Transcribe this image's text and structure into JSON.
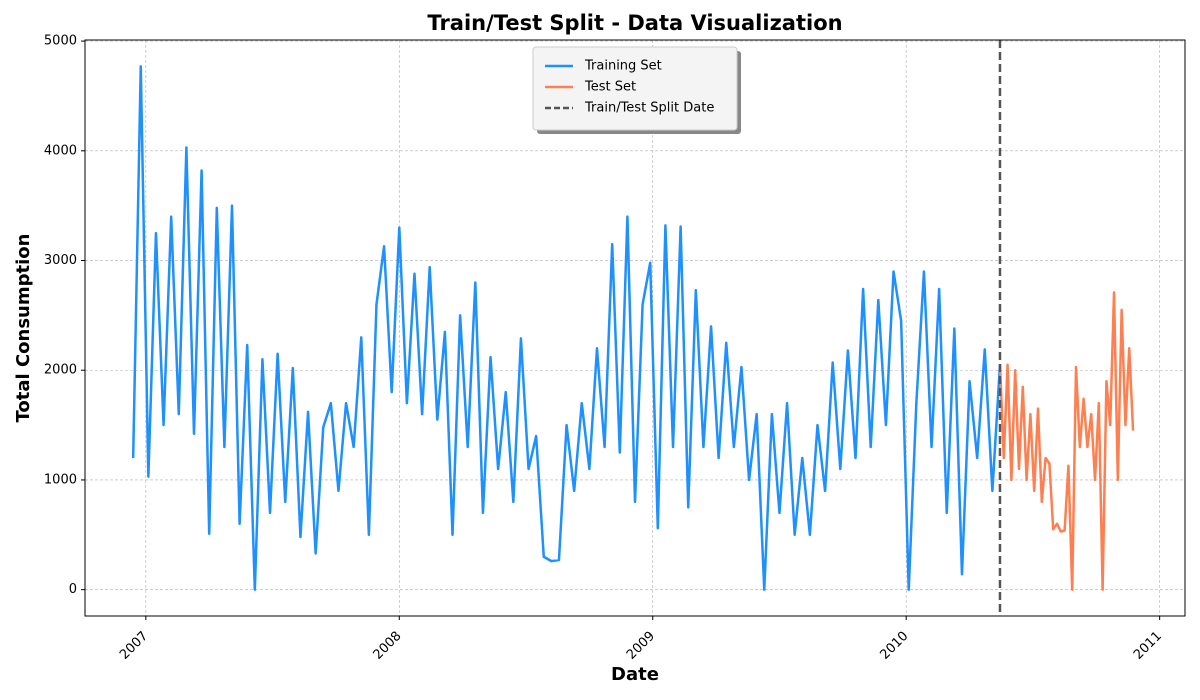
{
  "chart_data": {
    "type": "line",
    "title": "Train/Test Split - Data Visualization",
    "x_label": "Date",
    "y_label": "Total Consumption",
    "xlim": [
      2006.76,
      2011.1
    ],
    "xticks": [
      2007,
      2008,
      2009,
      2010,
      2011
    ],
    "ylim": [
      -240,
      5010
    ],
    "yticks": [
      0,
      1000,
      2000,
      3000,
      4000,
      5000
    ],
    "grid": true,
    "legend_position": "upper center",
    "split_x": 2010.37,
    "split_label": "Train/Test Split Date",
    "split_color": "#555555",
    "series": [
      {
        "name": "Training Set",
        "color": "#1e90ff",
        "x": [
          2006.95,
          2006.98,
          2007.01,
          2007.04,
          2007.07,
          2007.1,
          2007.13,
          2007.16,
          2007.19,
          2007.22,
          2007.25,
          2007.28,
          2007.31,
          2007.34,
          2007.37,
          2007.4,
          2007.43,
          2007.46,
          2007.49,
          2007.52,
          2007.55,
          2007.58,
          2007.61,
          2007.64,
          2007.67,
          2007.7,
          2007.73,
          2007.76,
          2007.79,
          2007.82,
          2007.85,
          2007.88,
          2007.91,
          2007.94,
          2007.97,
          2008,
          2008.03,
          2008.06,
          2008.09,
          2008.12,
          2008.15,
          2008.18,
          2008.21,
          2008.24,
          2008.27,
          2008.3,
          2008.33,
          2008.36,
          2008.39,
          2008.42,
          2008.45,
          2008.48,
          2008.51,
          2008.54,
          2008.57,
          2008.6,
          2008.63,
          2008.66,
          2008.69,
          2008.72,
          2008.75,
          2008.78,
          2008.81,
          2008.84,
          2008.87,
          2008.9,
          2008.93,
          2008.96,
          2008.99,
          2009.02,
          2009.05,
          2009.08,
          2009.11,
          2009.14,
          2009.17,
          2009.2,
          2009.23,
          2009.26,
          2009.29,
          2009.32,
          2009.35,
          2009.38,
          2009.41,
          2009.44,
          2009.47,
          2009.5,
          2009.53,
          2009.56,
          2009.59,
          2009.62,
          2009.65,
          2009.68,
          2009.71,
          2009.74,
          2009.77,
          2009.8,
          2009.83,
          2009.86,
          2009.89,
          2009.92,
          2009.95,
          2009.98,
          2010.01,
          2010.04,
          2010.07,
          2010.1,
          2010.13,
          2010.16,
          2010.19,
          2010.22,
          2010.25,
          2010.28,
          2010.31,
          2010.34,
          2010.37
        ],
        "values": [
          1200,
          4770,
          1030,
          3250,
          1500,
          3400,
          1600,
          4030,
          1420,
          3820,
          510,
          3480,
          1300,
          3500,
          600,
          2230,
          0,
          2100,
          700,
          2150,
          800,
          2020,
          480,
          1620,
          330,
          1480,
          1700,
          900,
          1700,
          1300,
          2300,
          500,
          2600,
          3130,
          1800,
          3300,
          1700,
          2880,
          1600,
          2940,
          1550,
          2350,
          500,
          2500,
          1300,
          2800,
          700,
          2120,
          1100,
          1800,
          800,
          2290,
          1100,
          1400,
          300,
          260,
          270,
          1500,
          900,
          1700,
          1100,
          2200,
          1300,
          3150,
          1250,
          3400,
          800,
          2600,
          2980,
          560,
          3320,
          1300,
          3310,
          750,
          2730,
          1300,
          2400,
          1200,
          2250,
          1300,
          2030,
          1000,
          1600,
          0,
          1600,
          700,
          1700,
          500,
          1200,
          500,
          1500,
          900,
          2070,
          1100,
          2180,
          1200,
          2740,
          1300,
          2640,
          1500,
          2900,
          2450,
          0,
          1700,
          2900,
          1300,
          2740,
          700,
          2380,
          140,
          1900,
          1200,
          2190,
          900,
          2050
        ]
      },
      {
        "name": "Test Set",
        "color": "#ff7f50",
        "x": [
          2010.37,
          2010.385,
          2010.4,
          2010.415,
          2010.43,
          2010.445,
          2010.46,
          2010.475,
          2010.49,
          2010.505,
          2010.52,
          2010.535,
          2010.55,
          2010.565,
          2010.58,
          2010.595,
          2010.61,
          2010.625,
          2010.64,
          2010.655,
          2010.67,
          2010.685,
          2010.7,
          2010.715,
          2010.73,
          2010.745,
          2010.76,
          2010.775,
          2010.79,
          2010.805,
          2010.82,
          2010.835,
          2010.85,
          2010.865,
          2010.88,
          2010.895
        ],
        "values": [
          2050,
          1200,
          2050,
          1000,
          2000,
          1100,
          1850,
          1000,
          1600,
          900,
          1650,
          800,
          1200,
          1150,
          550,
          600,
          530,
          540,
          1130,
          0,
          2030,
          1300,
          1740,
          1300,
          1600,
          1000,
          1700,
          0,
          1900,
          1500,
          2710,
          1000,
          2550,
          1500,
          2200,
          1450
        ]
      }
    ]
  }
}
